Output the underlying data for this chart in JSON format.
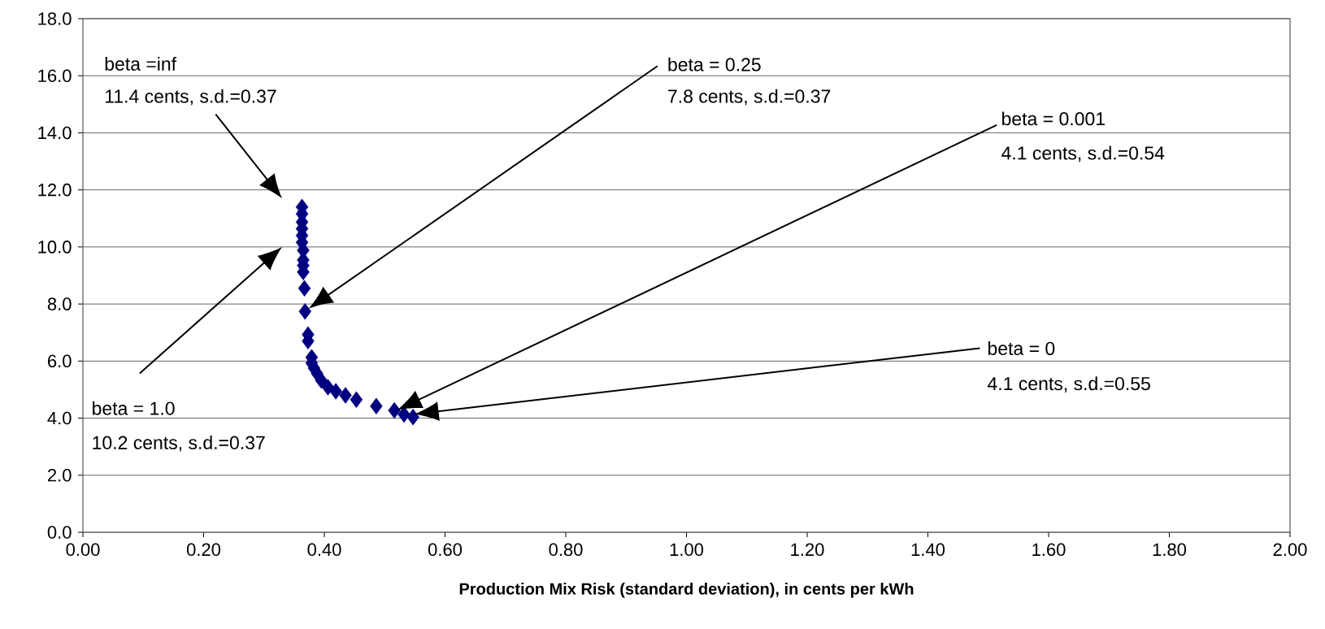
{
  "chart_data": {
    "type": "scatter",
    "xlabel": "Production Mix Risk (standard deviation), in cents per kWh",
    "x": [
      0.363,
      0.363,
      0.363,
      0.363,
      0.363,
      0.363,
      0.365,
      0.365,
      0.365,
      0.365,
      0.367,
      0.368,
      0.373,
      0.373,
      0.379,
      0.379,
      0.383,
      0.388,
      0.395,
      0.406,
      0.419,
      0.435,
      0.453,
      0.486,
      0.516,
      0.532,
      0.547
    ],
    "values": [
      11.4,
      11.16,
      10.87,
      10.64,
      10.4,
      10.16,
      9.88,
      9.54,
      9.35,
      9.12,
      8.55,
      7.74,
      6.93,
      6.7,
      6.13,
      5.93,
      5.75,
      5.56,
      5.32,
      5.08,
      4.94,
      4.8,
      4.65,
      4.42,
      4.27,
      4.13,
      4.04
    ],
    "color": "#000080",
    "marker": "diamond",
    "grid": "y",
    "xlim": [
      0,
      2
    ],
    "ylim": [
      0,
      18
    ],
    "xticks": [
      {
        "value": 0,
        "label": "0.00"
      },
      {
        "value": 0.2,
        "label": "0.20"
      },
      {
        "value": 0.4,
        "label": "0.40"
      },
      {
        "value": 0.6,
        "label": "0.60"
      },
      {
        "value": 0.8,
        "label": "0.80"
      },
      {
        "value": 1.0,
        "label": "1.00"
      },
      {
        "value": 1.2,
        "label": "1.20"
      },
      {
        "value": 1.4,
        "label": "1.40"
      },
      {
        "value": 1.6,
        "label": "1.60"
      },
      {
        "value": 1.8,
        "label": "1.80"
      },
      {
        "value": 2.0,
        "label": "2.00"
      }
    ],
    "yticks": [
      {
        "value": 0,
        "label": "0.0"
      },
      {
        "value": 2,
        "label": "2.0"
      },
      {
        "value": 4,
        "label": "4.0"
      },
      {
        "value": 6,
        "label": "6.0"
      },
      {
        "value": 8,
        "label": "8.0"
      },
      {
        "value": 10,
        "label": "10.0"
      },
      {
        "value": 12,
        "label": "12.0"
      },
      {
        "value": 14,
        "label": "14.0"
      },
      {
        "value": 16,
        "label": "16.0"
      },
      {
        "value": 18,
        "label": "18.0"
      }
    ],
    "annotations": [
      "beta =inf",
      "11.4 cents, s.d.=0.37",
      "beta = 0.25",
      "7.8 cents, s.d.=0.37",
      "beta = 0.001",
      "4.1 cents, s.d.=0.54",
      "beta = 0",
      "4.1 cents, s.d.=0.55",
      "beta = 1.0",
      "10.2 cents, s.d.=0.37"
    ]
  }
}
